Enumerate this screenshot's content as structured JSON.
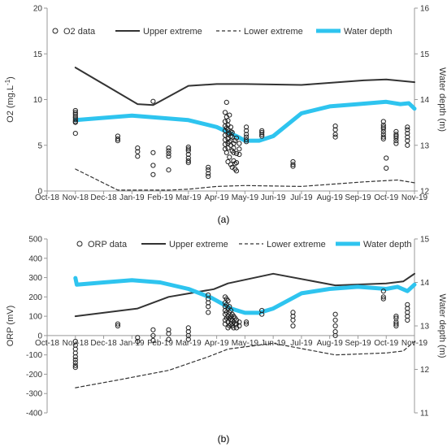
{
  "panel_labels": [
    "(a)",
    "(b)"
  ],
  "chart_data": [
    {
      "type": "scatter",
      "panel": "(a)",
      "xlabel": "",
      "ylabel": "O2 (mg.L-1)",
      "ylabel_main": "O2 (mg.L",
      "ylabel_sup": "-1",
      "ylabel_end": ")",
      "y2label": "Water depth (m)",
      "xlim": [
        0,
        13
      ],
      "ylim": [
        0,
        20
      ],
      "y2lim": [
        12,
        16
      ],
      "x_ticks": [
        "Oct-18",
        "Nov-18",
        "Dec-18",
        "Jan-19",
        "Feb-19",
        "Mar-19",
        "Apr-19",
        "May-19",
        "Jun-19",
        "Jul-19",
        "Aug-19",
        "Sep-19",
        "Oct-19",
        "Nov-19"
      ],
      "y_ticks": [
        "0",
        "5",
        "10",
        "15",
        "20"
      ],
      "y2_ticks": [
        "12",
        "13",
        "14",
        "15",
        "16"
      ],
      "legend": [
        "O2 data",
        "Upper extreme",
        "Lower extreme",
        "Water depth"
      ],
      "grid": false,
      "series": [
        {
          "name": "O2 data",
          "kind": "scatter",
          "axis": "left",
          "x": [
            1.0,
            1.0,
            1.0,
            1.0,
            1.0,
            1.0,
            1.0,
            1.0,
            1.0,
            2.5,
            2.5,
            2.5,
            3.2,
            3.2,
            3.2,
            3.75,
            3.75,
            3.75,
            3.75,
            4.3,
            4.3,
            4.3,
            4.3,
            4.3,
            5.0,
            5.0,
            5.0,
            5.0,
            5.0,
            5.0,
            5.0,
            5.7,
            5.7,
            5.7,
            5.7,
            6.3,
            6.3,
            6.3,
            6.3,
            6.3,
            6.3,
            6.3,
            6.3,
            6.35,
            6.35,
            6.35,
            6.35,
            6.4,
            6.4,
            6.4,
            6.4,
            6.4,
            6.4,
            6.4,
            6.4,
            6.45,
            6.45,
            6.45,
            6.45,
            6.5,
            6.5,
            6.5,
            6.5,
            6.5,
            6.5,
            6.55,
            6.55,
            6.55,
            6.55,
            6.6,
            6.6,
            6.6,
            6.6,
            6.65,
            6.65,
            6.65,
            6.7,
            6.7,
            6.7,
            6.7,
            6.8,
            6.8,
            6.8,
            7.05,
            7.05,
            7.05,
            7.05,
            7.05,
            7.05,
            7.6,
            7.6,
            7.6,
            7.6,
            8.7,
            8.7,
            8.7,
            10.2,
            10.2,
            10.2,
            10.2,
            11.9,
            11.9,
            11.9,
            11.9,
            11.9,
            11.9,
            11.9,
            11.9,
            12.0,
            12.0,
            12.35,
            12.35,
            12.35,
            12.35,
            12.35,
            12.35,
            12.75,
            12.75,
            12.75,
            12.75,
            12.75,
            12.75
          ],
          "y": [
            8.8,
            8.6,
            8.4,
            8.2,
            8.0,
            7.8,
            7.6,
            7.5,
            6.3,
            6.0,
            5.7,
            5.5,
            4.7,
            4.3,
            3.8,
            9.8,
            4.2,
            2.8,
            1.8,
            4.7,
            4.4,
            4.1,
            3.8,
            2.3,
            4.8,
            4.6,
            4.4,
            4.0,
            3.6,
            3.3,
            3.1,
            2.6,
            2.3,
            1.9,
            1.6,
            8.6,
            7.6,
            7.1,
            6.6,
            6.1,
            5.6,
            5.1,
            4.6,
            9.7,
            8.1,
            6.9,
            4.2,
            7.7,
            7.2,
            6.7,
            6.2,
            5.7,
            5.2,
            4.7,
            3.2,
            8.3,
            6.3,
            5.4,
            3.7,
            7.0,
            6.5,
            6.0,
            5.5,
            5.0,
            2.9,
            6.4,
            5.9,
            4.4,
            2.6,
            5.2,
            4.7,
            4.2,
            3.3,
            5.5,
            3.0,
            2.4,
            5.8,
            4.1,
            3.1,
            2.2,
            5.2,
            4.6,
            4.0,
            7.0,
            6.6,
            6.2,
            5.9,
            5.6,
            5.4,
            6.6,
            6.4,
            6.2,
            6.0,
            3.2,
            2.9,
            2.7,
            7.1,
            6.7,
            6.2,
            5.9,
            7.6,
            7.2,
            7.0,
            6.8,
            6.5,
            6.2,
            5.9,
            5.7,
            3.6,
            2.5,
            6.5,
            6.2,
            6.0,
            5.8,
            5.5,
            5.2,
            7.0,
            6.7,
            6.3,
            5.9,
            5.5,
            5.0
          ]
        },
        {
          "name": "Upper extreme",
          "kind": "line",
          "axis": "left",
          "x": [
            1.0,
            3.2,
            3.75,
            5.0,
            6.0,
            7.0,
            9.0,
            11.2,
            12.0,
            13.0
          ],
          "y": [
            13.5,
            9.5,
            9.4,
            11.5,
            11.7,
            11.7,
            11.6,
            12.1,
            12.2,
            11.9
          ]
        },
        {
          "name": "Lower extreme",
          "kind": "dashed",
          "axis": "left",
          "x": [
            1.0,
            2.5,
            4.3,
            5.0,
            6.0,
            7.0,
            9.0,
            11.2,
            12.4,
            13.0
          ],
          "y": [
            2.4,
            0.1,
            0.1,
            0.2,
            0.5,
            0.6,
            0.5,
            1.0,
            1.2,
            0.9
          ]
        },
        {
          "name": "Water depth",
          "kind": "thick",
          "axis": "right",
          "x": [
            1.0,
            2.0,
            3.0,
            4.0,
            5.0,
            6.0,
            6.7,
            7.0,
            7.5,
            8.0,
            9.0,
            10.0,
            11.0,
            12.0,
            12.5,
            12.8,
            13.0
          ],
          "y": [
            13.55,
            13.6,
            13.65,
            13.6,
            13.55,
            13.4,
            13.2,
            13.1,
            13.1,
            13.2,
            13.7,
            13.85,
            13.9,
            13.95,
            13.9,
            13.92,
            13.8
          ]
        }
      ]
    },
    {
      "type": "scatter",
      "panel": "(b)",
      "xlabel": "",
      "ylabel": "ORP (mV)",
      "y2label": "Water depth (m)",
      "xlim": [
        0,
        13
      ],
      "ylim": [
        -400,
        500
      ],
      "y2lim": [
        11,
        15
      ],
      "x_ticks": [
        "Oct-18",
        "Nov-18",
        "Dec-18",
        "Jan-19",
        "Feb-19",
        "Mar-19",
        "Apr-19",
        "May-19",
        "Jun-19",
        "Jul-19",
        "Aug-19",
        "Sep-19",
        "Oct-19",
        "Nov-19"
      ],
      "y_ticks": [
        "-400",
        "-300",
        "-200",
        "-100",
        "0",
        "100",
        "200",
        "300",
        "400",
        "500"
      ],
      "y2_ticks": [
        "11",
        "12",
        "13",
        "14",
        "15"
      ],
      "legend": [
        "ORP data",
        "Upper extreme",
        "Lower extreme",
        "Water depth"
      ],
      "grid": false,
      "series": [
        {
          "name": "ORP data",
          "kind": "scatter",
          "axis": "left",
          "x": [
            1.0,
            1.0,
            1.0,
            1.0,
            1.0,
            1.0,
            1.0,
            1.0,
            1.0,
            2.5,
            2.5,
            3.2,
            3.2,
            3.75,
            3.75,
            3.75,
            4.3,
            4.3,
            4.3,
            5.0,
            5.0,
            5.0,
            5.0,
            5.7,
            5.7,
            5.7,
            5.7,
            5.7,
            6.3,
            6.3,
            6.3,
            6.3,
            6.3,
            6.3,
            6.3,
            6.35,
            6.35,
            6.35,
            6.35,
            6.4,
            6.4,
            6.4,
            6.4,
            6.4,
            6.45,
            6.45,
            6.45,
            6.45,
            6.5,
            6.5,
            6.5,
            6.5,
            6.55,
            6.55,
            6.55,
            6.6,
            6.6,
            6.6,
            6.65,
            6.65,
            6.7,
            6.7,
            6.7,
            6.8,
            6.8,
            7.05,
            7.05,
            7.6,
            7.6,
            8.7,
            8.7,
            8.7,
            8.7,
            10.2,
            10.2,
            10.2,
            10.2,
            10.2,
            11.9,
            11.9,
            11.9,
            12.35,
            12.35,
            12.35,
            12.35,
            12.35,
            12.75,
            12.75,
            12.75,
            12.75,
            12.75
          ],
          "y": [
            -30,
            -50,
            -70,
            -90,
            -110,
            -125,
            -140,
            -155,
            -165,
            60,
            50,
            -10,
            -30,
            30,
            0,
            -25,
            30,
            10,
            -20,
            40,
            20,
            0,
            -20,
            210,
            190,
            170,
            150,
            120,
            200,
            170,
            150,
            130,
            110,
            80,
            60,
            190,
            160,
            120,
            90,
            180,
            140,
            100,
            70,
            40,
            150,
            120,
            90,
            50,
            130,
            100,
            80,
            60,
            110,
            80,
            50,
            100,
            70,
            40,
            90,
            60,
            80,
            60,
            40,
            70,
            50,
            70,
            60,
            130,
            110,
            120,
            100,
            80,
            50,
            110,
            80,
            50,
            20,
            0,
            230,
            200,
            190,
            100,
            90,
            70,
            60,
            50,
            160,
            140,
            120,
            100,
            80
          ]
        },
        {
          "name": "Upper extreme",
          "kind": "line",
          "axis": "left",
          "x": [
            1.0,
            3.2,
            4.3,
            5.9,
            6.4,
            8.0,
            10.2,
            12.0,
            12.6,
            13.0
          ],
          "y": [
            100,
            140,
            200,
            240,
            270,
            320,
            260,
            270,
            280,
            320
          ]
        },
        {
          "name": "Lower extreme",
          "kind": "dashed",
          "axis": "left",
          "x": [
            1.0,
            2.5,
            4.3,
            5.7,
            6.4,
            8.0,
            10.2,
            12.0,
            12.6,
            13.0
          ],
          "y": [
            -270,
            -230,
            -180,
            -110,
            -70,
            -40,
            -100,
            -90,
            -80,
            -30
          ]
        },
        {
          "name": "Water depth",
          "kind": "thick",
          "axis": "right",
          "x": [
            1.0,
            1.05,
            2.0,
            3.0,
            4.0,
            5.0,
            5.8,
            6.5,
            7.0,
            7.5,
            8.0,
            9.0,
            10.0,
            11.0,
            12.0,
            12.4,
            12.75,
            13.0
          ],
          "y": [
            14.1,
            13.95,
            14.0,
            14.05,
            14.0,
            13.85,
            13.65,
            13.4,
            13.3,
            13.3,
            13.4,
            13.75,
            13.85,
            13.9,
            13.85,
            13.9,
            13.8,
            13.95
          ]
        }
      ]
    }
  ]
}
